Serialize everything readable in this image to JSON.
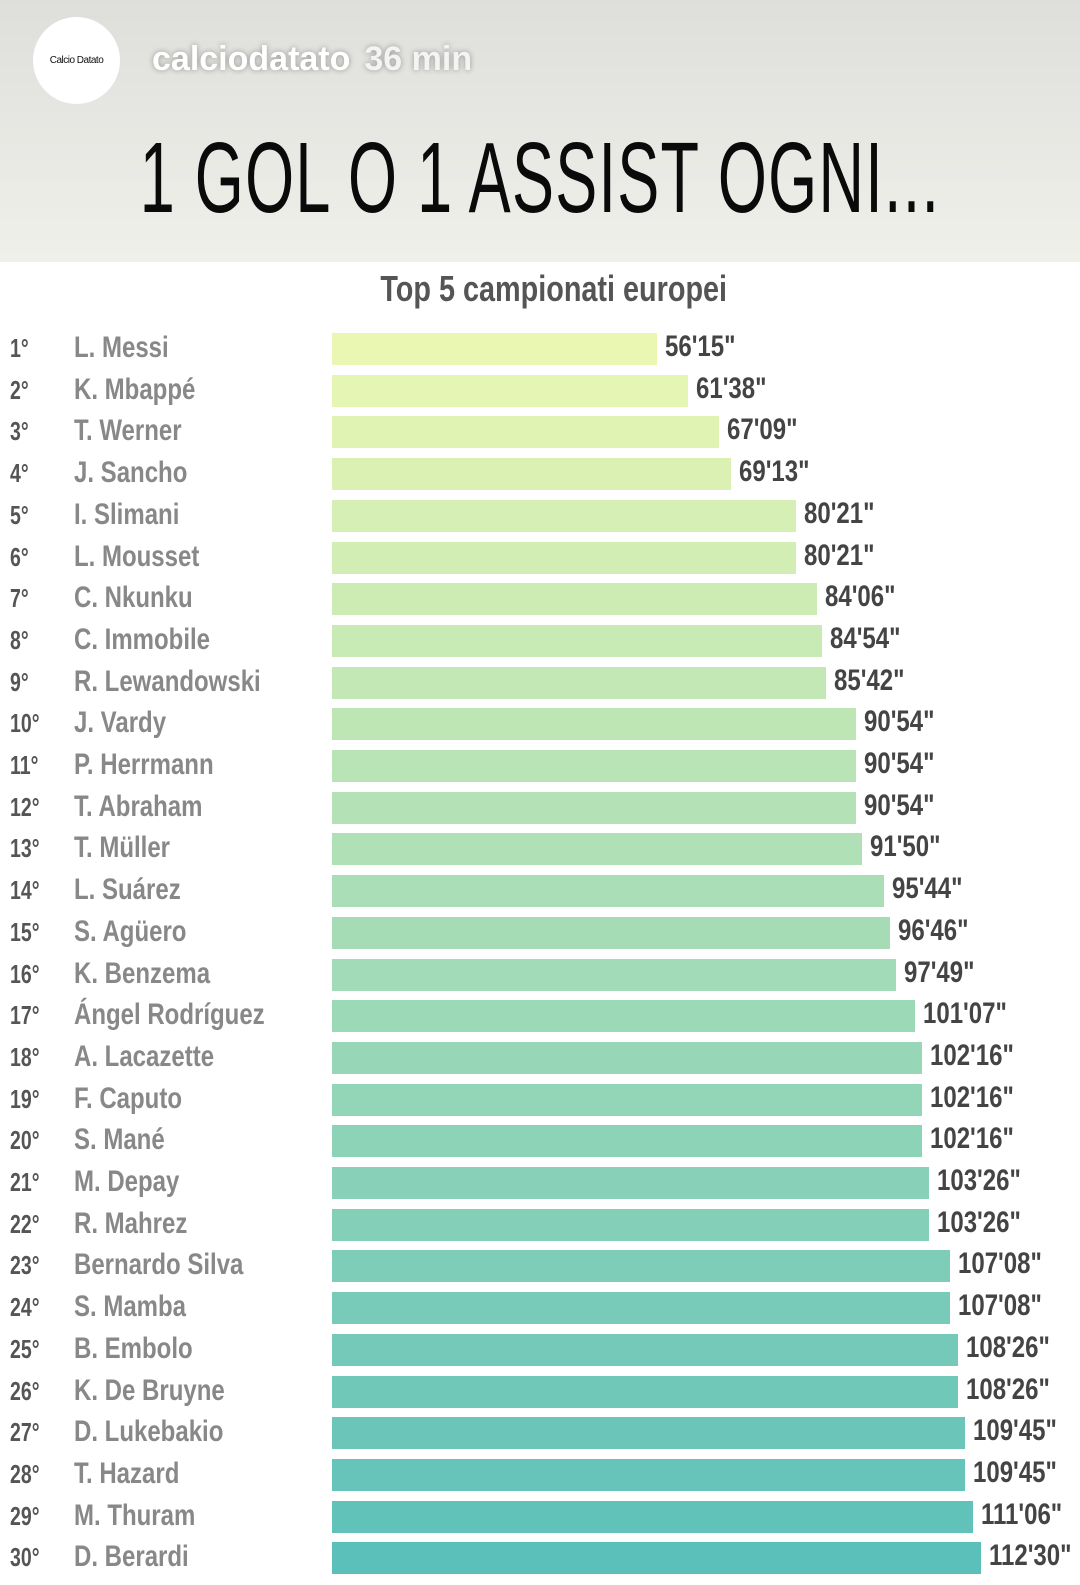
{
  "story": {
    "username": "calciodatato",
    "time": "36 min",
    "avatar_logo_text": "Calcio Datato"
  },
  "headline": "1 GOL O 1 ASSIST OGNI...",
  "chart_data": {
    "type": "bar",
    "orientation": "horizontal",
    "title": "Top 5 campionati europei",
    "colors": {
      "start": "#eaf7b3",
      "end": "#5cc0ba"
    },
    "rows": [
      {
        "rank": "1°",
        "name": "L. Messi",
        "label": "56'15\"",
        "value": 56.25
      },
      {
        "rank": "2°",
        "name": "K. Mbappé",
        "label": "61'38\"",
        "value": 61.633
      },
      {
        "rank": "3°",
        "name": "T. Werner",
        "label": "67'09\"",
        "value": 67.15
      },
      {
        "rank": "4°",
        "name": "J. Sancho",
        "label": "69'13\"",
        "value": 69.217
      },
      {
        "rank": "5°",
        "name": "I. Slimani",
        "label": "80'21\"",
        "value": 80.35
      },
      {
        "rank": "6°",
        "name": "L. Mousset",
        "label": "80'21\"",
        "value": 80.35
      },
      {
        "rank": "7°",
        "name": "C. Nkunku",
        "label": "84'06\"",
        "value": 84.1
      },
      {
        "rank": "8°",
        "name": "C. Immobile",
        "label": "84'54\"",
        "value": 84.9
      },
      {
        "rank": "9°",
        "name": "R. Lewandowski",
        "label": "85'42\"",
        "value": 85.7
      },
      {
        "rank": "10°",
        "name": "J. Vardy",
        "label": "90'54\"",
        "value": 90.9
      },
      {
        "rank": "11°",
        "name": "P. Herrmann",
        "label": "90'54\"",
        "value": 90.9
      },
      {
        "rank": "12°",
        "name": "T. Abraham",
        "label": "90'54\"",
        "value": 90.9
      },
      {
        "rank": "13°",
        "name": "T. Müller",
        "label": "91'50\"",
        "value": 91.833
      },
      {
        "rank": "14°",
        "name": "L. Suárez",
        "label": "95'44\"",
        "value": 95.733
      },
      {
        "rank": "15°",
        "name": "S. Agüero",
        "label": "96'46\"",
        "value": 96.767
      },
      {
        "rank": "16°",
        "name": "K. Benzema",
        "label": "97'49\"",
        "value": 97.817
      },
      {
        "rank": "17°",
        "name": "Ángel Rodríguez",
        "label": "101'07\"",
        "value": 101.117
      },
      {
        "rank": "18°",
        "name": "A. Lacazette",
        "label": "102'16\"",
        "value": 102.267
      },
      {
        "rank": "19°",
        "name": "F. Caputo",
        "label": "102'16\"",
        "value": 102.267
      },
      {
        "rank": "20°",
        "name": "S. Mané",
        "label": "102'16\"",
        "value": 102.267
      },
      {
        "rank": "21°",
        "name": "M. Depay",
        "label": "103'26\"",
        "value": 103.433
      },
      {
        "rank": "22°",
        "name": "R. Mahrez",
        "label": "103'26\"",
        "value": 103.433
      },
      {
        "rank": "23°",
        "name": "Bernardo Silva",
        "label": "107'08\"",
        "value": 107.133
      },
      {
        "rank": "24°",
        "name": "S. Mamba",
        "label": "107'08\"",
        "value": 107.133
      },
      {
        "rank": "25°",
        "name": "B. Embolo",
        "label": "108'26\"",
        "value": 108.433
      },
      {
        "rank": "26°",
        "name": "K. De Bruyne",
        "label": "108'26\"",
        "value": 108.433
      },
      {
        "rank": "27°",
        "name": "D. Lukebakio",
        "label": "109'45\"",
        "value": 109.75
      },
      {
        "rank": "28°",
        "name": "T. Hazard",
        "label": "109'45\"",
        "value": 109.75
      },
      {
        "rank": "29°",
        "name": "M. Thuram",
        "label": "111'06\"",
        "value": 111.1
      },
      {
        "rank": "30°",
        "name": "D. Berardi",
        "label": "112'30\"",
        "value": 112.5
      }
    ]
  }
}
